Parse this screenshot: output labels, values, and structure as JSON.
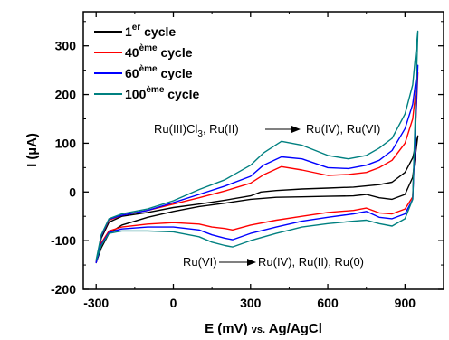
{
  "chart_data": {
    "type": "line",
    "xlabel": {
      "main": "E (mV)",
      "small": "vs.",
      "rest": "Ag/AgCl"
    },
    "ylabel": "I (µA)",
    "xlim": [
      -350,
      1050
    ],
    "ylim": [
      -200,
      370
    ],
    "xticks": [
      -300,
      0,
      300,
      600,
      900
    ],
    "yticks": [
      -200,
      -100,
      0,
      100,
      200,
      300
    ],
    "legend_position": "top-left",
    "annotations": {
      "oxidation": {
        "left": "Ru(III)Cl",
        "sub": "3",
        "right": ", Ru(II)",
        "product": "Ru(IV), Ru(VI)"
      },
      "reduction": {
        "left": "Ru(VI)",
        "product": "Ru(IV), Ru(II), Ru(0)"
      }
    },
    "series": [
      {
        "name": "1",
        "sup": "er",
        "suffix": " cycle",
        "color": "#000000",
        "upper": [
          [
            -300,
            -145
          ],
          [
            -280,
            -95
          ],
          [
            -250,
            -62
          ],
          [
            -200,
            -50
          ],
          [
            -100,
            -42
          ],
          [
            0,
            -32
          ],
          [
            100,
            -25
          ],
          [
            200,
            -17
          ],
          [
            300,
            -8
          ],
          [
            340,
            0
          ],
          [
            400,
            3
          ],
          [
            500,
            6
          ],
          [
            600,
            8
          ],
          [
            700,
            10
          ],
          [
            800,
            15
          ],
          [
            850,
            20
          ],
          [
            900,
            40
          ],
          [
            930,
            70
          ],
          [
            950,
            115
          ]
        ],
        "lower": [
          [
            -300,
            -145
          ],
          [
            -280,
            -115
          ],
          [
            -250,
            -85
          ],
          [
            -200,
            -68
          ],
          [
            -100,
            -52
          ],
          [
            0,
            -40
          ],
          [
            100,
            -30
          ],
          [
            200,
            -23
          ],
          [
            300,
            -15
          ],
          [
            400,
            -11
          ],
          [
            500,
            -10
          ],
          [
            600,
            -9
          ],
          [
            700,
            -8
          ],
          [
            750,
            -5
          ],
          [
            800,
            -12
          ],
          [
            850,
            -15
          ],
          [
            900,
            -5
          ],
          [
            930,
            30
          ],
          [
            950,
            115
          ]
        ]
      },
      {
        "name": "40",
        "sup": "ème",
        "suffix": " cycle",
        "color": "#ff0000",
        "upper": [
          [
            -300,
            -145
          ],
          [
            -280,
            -90
          ],
          [
            -250,
            -58
          ],
          [
            -200,
            -48
          ],
          [
            -100,
            -38
          ],
          [
            0,
            -25
          ],
          [
            100,
            -12
          ],
          [
            200,
            2
          ],
          [
            300,
            18
          ],
          [
            350,
            35
          ],
          [
            420,
            52
          ],
          [
            500,
            45
          ],
          [
            600,
            34
          ],
          [
            680,
            36
          ],
          [
            750,
            40
          ],
          [
            800,
            50
          ],
          [
            850,
            65
          ],
          [
            900,
            100
          ],
          [
            930,
            150
          ],
          [
            950,
            245
          ]
        ],
        "lower": [
          [
            -300,
            -145
          ],
          [
            -280,
            -105
          ],
          [
            -250,
            -80
          ],
          [
            -200,
            -72
          ],
          [
            -100,
            -66
          ],
          [
            0,
            -63
          ],
          [
            100,
            -66
          ],
          [
            150,
            -72
          ],
          [
            200,
            -75
          ],
          [
            230,
            -78
          ],
          [
            300,
            -68
          ],
          [
            400,
            -58
          ],
          [
            500,
            -50
          ],
          [
            600,
            -42
          ],
          [
            700,
            -38
          ],
          [
            750,
            -33
          ],
          [
            800,
            -43
          ],
          [
            850,
            -45
          ],
          [
            900,
            -35
          ],
          [
            930,
            -10
          ],
          [
            950,
            245
          ]
        ]
      },
      {
        "name": "60",
        "sup": "ème",
        "suffix": " cycle",
        "color": "#0000ff",
        "upper": [
          [
            -300,
            -145
          ],
          [
            -280,
            -90
          ],
          [
            -250,
            -56
          ],
          [
            -200,
            -48
          ],
          [
            -100,
            -38
          ],
          [
            0,
            -22
          ],
          [
            100,
            -5
          ],
          [
            200,
            12
          ],
          [
            300,
            32
          ],
          [
            350,
            55
          ],
          [
            420,
            72
          ],
          [
            500,
            68
          ],
          [
            600,
            50
          ],
          [
            680,
            48
          ],
          [
            750,
            55
          ],
          [
            800,
            65
          ],
          [
            850,
            85
          ],
          [
            900,
            130
          ],
          [
            930,
            180
          ],
          [
            950,
            260
          ]
        ],
        "lower": [
          [
            -300,
            -145
          ],
          [
            -280,
            -108
          ],
          [
            -250,
            -83
          ],
          [
            -200,
            -76
          ],
          [
            -100,
            -72
          ],
          [
            0,
            -72
          ],
          [
            100,
            -78
          ],
          [
            150,
            -88
          ],
          [
            200,
            -95
          ],
          [
            230,
            -98
          ],
          [
            300,
            -85
          ],
          [
            400,
            -72
          ],
          [
            500,
            -60
          ],
          [
            600,
            -52
          ],
          [
            700,
            -45
          ],
          [
            750,
            -40
          ],
          [
            800,
            -52
          ],
          [
            850,
            -55
          ],
          [
            900,
            -45
          ],
          [
            930,
            -15
          ],
          [
            950,
            260
          ]
        ]
      },
      {
        "name": "100",
        "sup": "ème",
        "suffix": " cycle",
        "color": "#008080",
        "upper": [
          [
            -300,
            -140
          ],
          [
            -280,
            -88
          ],
          [
            -250,
            -55
          ],
          [
            -200,
            -45
          ],
          [
            -100,
            -35
          ],
          [
            0,
            -18
          ],
          [
            100,
            5
          ],
          [
            200,
            25
          ],
          [
            300,
            55
          ],
          [
            350,
            80
          ],
          [
            420,
            104
          ],
          [
            500,
            96
          ],
          [
            600,
            75
          ],
          [
            680,
            68
          ],
          [
            750,
            75
          ],
          [
            800,
            90
          ],
          [
            850,
            110
          ],
          [
            900,
            160
          ],
          [
            930,
            220
          ],
          [
            950,
            330
          ]
        ],
        "lower": [
          [
            -300,
            -140
          ],
          [
            -280,
            -110
          ],
          [
            -250,
            -85
          ],
          [
            -200,
            -80
          ],
          [
            -100,
            -80
          ],
          [
            0,
            -82
          ],
          [
            100,
            -92
          ],
          [
            150,
            -103
          ],
          [
            200,
            -110
          ],
          [
            230,
            -113
          ],
          [
            300,
            -100
          ],
          [
            400,
            -85
          ],
          [
            500,
            -72
          ],
          [
            600,
            -65
          ],
          [
            700,
            -60
          ],
          [
            750,
            -58
          ],
          [
            800,
            -65
          ],
          [
            850,
            -70
          ],
          [
            900,
            -55
          ],
          [
            930,
            -15
          ],
          [
            950,
            330
          ]
        ]
      }
    ]
  }
}
